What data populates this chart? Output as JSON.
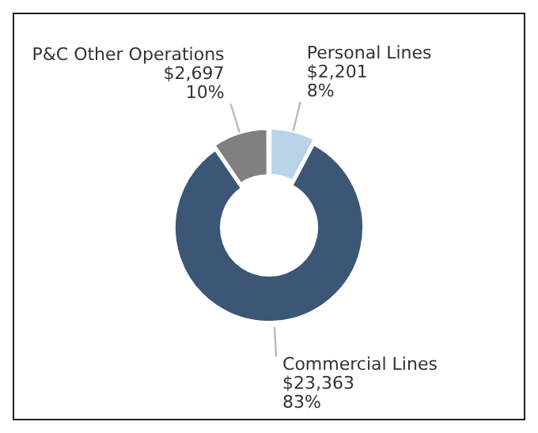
{
  "chart_data": {
    "type": "donut",
    "categories": [
      "Personal Lines",
      "Commercial Lines",
      "P&C Other Operations"
    ],
    "values": [
      2201,
      23363,
      2697
    ],
    "colors": [
      "#b9d3e9",
      "#3c5775",
      "#808080"
    ],
    "value_labels": [
      "$2,201\n8%",
      "$23,363\n83%",
      "$2,697\n10%"
    ]
  }
}
